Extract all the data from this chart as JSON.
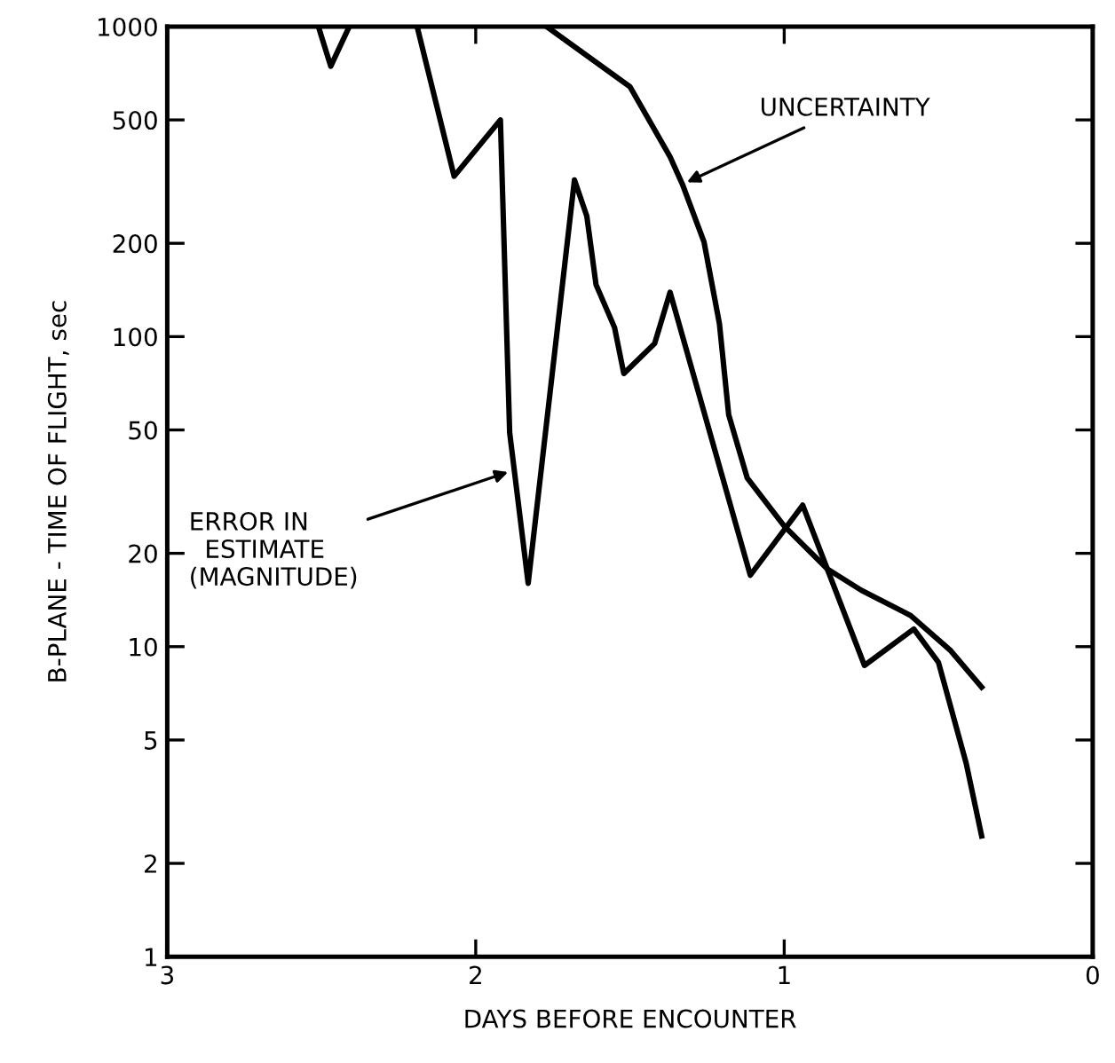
{
  "chart_data": {
    "type": "line",
    "xlabel": "DAYS BEFORE ENCOUNTER",
    "ylabel": "B-PLANE - TIME OF FLIGHT, sec",
    "log": "y",
    "xlim": [
      3,
      0
    ],
    "ylim": [
      1,
      1000
    ],
    "xticks": [
      3,
      2,
      1,
      0
    ],
    "yticks": [
      1,
      2,
      5,
      10,
      20,
      50,
      100,
      200,
      500,
      1000
    ],
    "grid": false,
    "legend": false,
    "marker": "none",
    "line_style": "solid",
    "series": [
      {
        "color": "#000000",
        "x": [
          2.51,
          2.47,
          2.41,
          2.3,
          2.19,
          2.07,
          1.92,
          1.89,
          1.83,
          1.68,
          1.64,
          1.61,
          1.55,
          1.52,
          1.42,
          1.37,
          1.11,
          0.94,
          0.74,
          0.58,
          0.5,
          0.41,
          0.36
        ],
        "values": [
          1000,
          745,
          1000,
          null,
          1000,
          329,
          500,
          49,
          16,
          320,
          245,
          147,
          107,
          76,
          95,
          139,
          17,
          28.6,
          8.7,
          11.4,
          8.9,
          4.2,
          2.45
        ]
      },
      {
        "color": "#000000",
        "x": [
          1.77,
          1.5,
          1.37,
          1.33,
          1.26,
          1.21,
          1.18,
          1.12,
          1.0,
          0.86,
          0.75,
          0.59,
          0.46,
          0.36
        ],
        "values": [
          1000,
          640,
          380,
          310,
          202,
          110,
          56,
          35,
          24.5,
          17.8,
          15.2,
          12.6,
          9.7,
          7.4
        ]
      }
    ],
    "annotations": [
      {
        "text": "ERROR IN\n  ESTIMATE\n(MAGNITUDE)",
        "x": 1.88,
        "y": 37
      },
      {
        "text": "UNCERTAINTY",
        "x": 1.33,
        "y": 310
      }
    ]
  }
}
